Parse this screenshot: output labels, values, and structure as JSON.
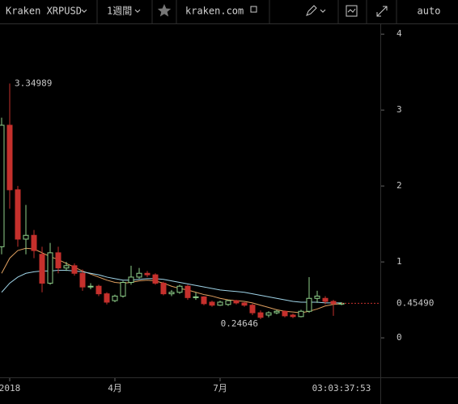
{
  "toolbar": {
    "symbol": "Kraken XRPUSD",
    "interval": "1週間",
    "site": "kraken.com",
    "scale_mode": "auto"
  },
  "chart_data": {
    "type": "candlestick",
    "categories": [
      null,
      "2018",
      null,
      null,
      null,
      null,
      null,
      null,
      null,
      null,
      null,
      null,
      null,
      null,
      "4月",
      null,
      null,
      null,
      null,
      null,
      null,
      null,
      null,
      null,
      null,
      null,
      null,
      "7月",
      null,
      null,
      null,
      null,
      null,
      null,
      null,
      null,
      null,
      null,
      null,
      null,
      null,
      null,
      null
    ],
    "open": [
      1.2,
      2.8,
      1.95,
      1.3,
      1.35,
      1.1,
      0.72,
      1.12,
      0.92,
      0.95,
      0.85,
      0.67,
      0.68,
      0.58,
      0.49,
      0.55,
      0.73,
      0.8,
      0.85,
      0.83,
      0.72,
      0.58,
      0.6,
      0.68,
      0.53,
      0.54,
      0.47,
      0.43,
      0.44,
      0.49,
      0.46,
      0.43,
      0.33,
      0.3,
      0.33,
      0.35,
      0.3,
      0.28,
      0.35,
      0.52,
      0.52,
      0.48,
      0.45
    ],
    "high": [
      2.9,
      3.34989,
      2.0,
      1.75,
      1.42,
      1.2,
      1.25,
      1.2,
      1.0,
      0.98,
      0.9,
      0.72,
      0.7,
      0.6,
      0.57,
      0.75,
      0.95,
      0.92,
      0.88,
      0.85,
      0.74,
      0.63,
      0.7,
      0.7,
      0.6,
      0.55,
      0.49,
      0.49,
      0.5,
      0.5,
      0.47,
      0.45,
      0.36,
      0.35,
      0.37,
      0.36,
      0.32,
      0.37,
      0.8,
      0.62,
      0.55,
      0.5,
      0.47
    ],
    "low": [
      1.1,
      1.7,
      1.2,
      1.1,
      1.05,
      0.6,
      0.7,
      0.85,
      0.88,
      0.82,
      0.62,
      0.64,
      0.55,
      0.44,
      0.47,
      0.53,
      0.7,
      0.78,
      0.8,
      0.7,
      0.56,
      0.55,
      0.58,
      0.5,
      0.5,
      0.43,
      0.41,
      0.42,
      0.42,
      0.44,
      0.41,
      0.3,
      0.24646,
      0.27,
      0.31,
      0.27,
      0.26,
      0.27,
      0.33,
      0.46,
      0.44,
      0.29,
      0.43
    ],
    "close": [
      2.8,
      1.95,
      1.3,
      1.35,
      1.15,
      0.72,
      1.12,
      0.92,
      0.95,
      0.85,
      0.67,
      0.68,
      0.58,
      0.47,
      0.55,
      0.73,
      0.8,
      0.85,
      0.83,
      0.72,
      0.58,
      0.6,
      0.68,
      0.53,
      0.54,
      0.45,
      0.43,
      0.47,
      0.49,
      0.46,
      0.43,
      0.33,
      0.27,
      0.33,
      0.35,
      0.29,
      0.28,
      0.35,
      0.52,
      0.55,
      0.48,
      0.45,
      0.4549
    ],
    "up_color": "#8fd08a",
    "down_color": "#c5302c",
    "lines": [
      {
        "color": "#e0a060",
        "values": [
          0.85,
          1.05,
          1.15,
          1.18,
          1.17,
          1.12,
          1.07,
          1.03,
          0.98,
          0.93,
          0.88,
          0.84,
          0.8,
          0.76,
          0.73,
          0.72,
          0.73,
          0.75,
          0.76,
          0.75,
          0.72,
          0.68,
          0.65,
          0.63,
          0.6,
          0.57,
          0.55,
          0.52,
          0.5,
          0.49,
          0.48,
          0.46,
          0.43,
          0.4,
          0.37,
          0.35,
          0.34,
          0.33,
          0.35,
          0.38,
          0.42,
          0.44,
          0.45
        ]
      },
      {
        "color": "#9fd4e8",
        "values": [
          0.6,
          0.72,
          0.8,
          0.85,
          0.87,
          0.88,
          0.88,
          0.89,
          0.89,
          0.88,
          0.87,
          0.85,
          0.83,
          0.8,
          0.78,
          0.76,
          0.76,
          0.77,
          0.78,
          0.78,
          0.77,
          0.75,
          0.73,
          0.71,
          0.69,
          0.67,
          0.65,
          0.63,
          0.62,
          0.61,
          0.6,
          0.58,
          0.56,
          0.54,
          0.52,
          0.5,
          0.48,
          0.47,
          0.47,
          0.47,
          0.46,
          0.46,
          0.46
        ]
      }
    ],
    "last_price_label": "0.45490",
    "countdown": "03:03:37:53",
    "ylim": [
      -0.52,
      4.13
    ],
    "yticks": [
      0,
      1,
      2,
      3,
      4
    ]
  }
}
